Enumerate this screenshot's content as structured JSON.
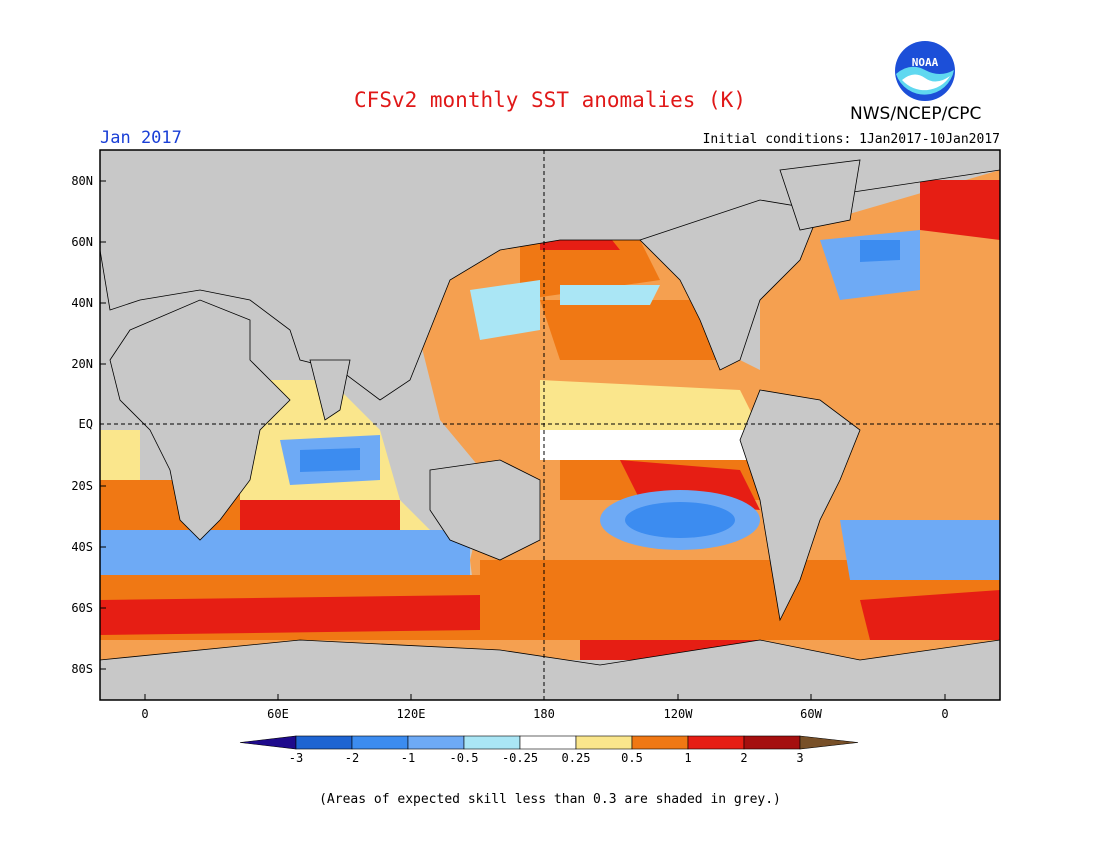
{
  "title": "CFSv2 monthly SST anomalies (K)",
  "month": "Jan 2017",
  "initial_conditions": "Initial conditions: 1Jan2017-10Jan2017",
  "agency": "NWS/NCEP/CPC",
  "logo_text": "NOAA",
  "footnote": "(Areas of expected skill less than 0.3 are shaded in grey.)",
  "map": {
    "lat_labels": [
      "80N",
      "60N",
      "40N",
      "20N",
      "EQ",
      "20S",
      "40S",
      "60S",
      "80S"
    ],
    "lon_labels": [
      "0",
      "60E",
      "120E",
      "180",
      "120W",
      "60W",
      "0"
    ],
    "reference_lines": [
      "EQ",
      "180"
    ],
    "land_color": "#c8c8c8",
    "grey_color": "#c0c0c0"
  },
  "colorbar": {
    "ticks": [
      "-3",
      "-2",
      "-1",
      "-0.5",
      "-0.25",
      "0.25",
      "0.5",
      "1",
      "2",
      "3"
    ],
    "colors": [
      "#1e0a8c",
      "#1e64d2",
      "#3c8cf0",
      "#6eaaf5",
      "#aae6f5",
      "#ffffff",
      "#fae68c",
      "#f07814",
      "#e61e14",
      "#a50f0f",
      "#785028"
    ]
  }
}
